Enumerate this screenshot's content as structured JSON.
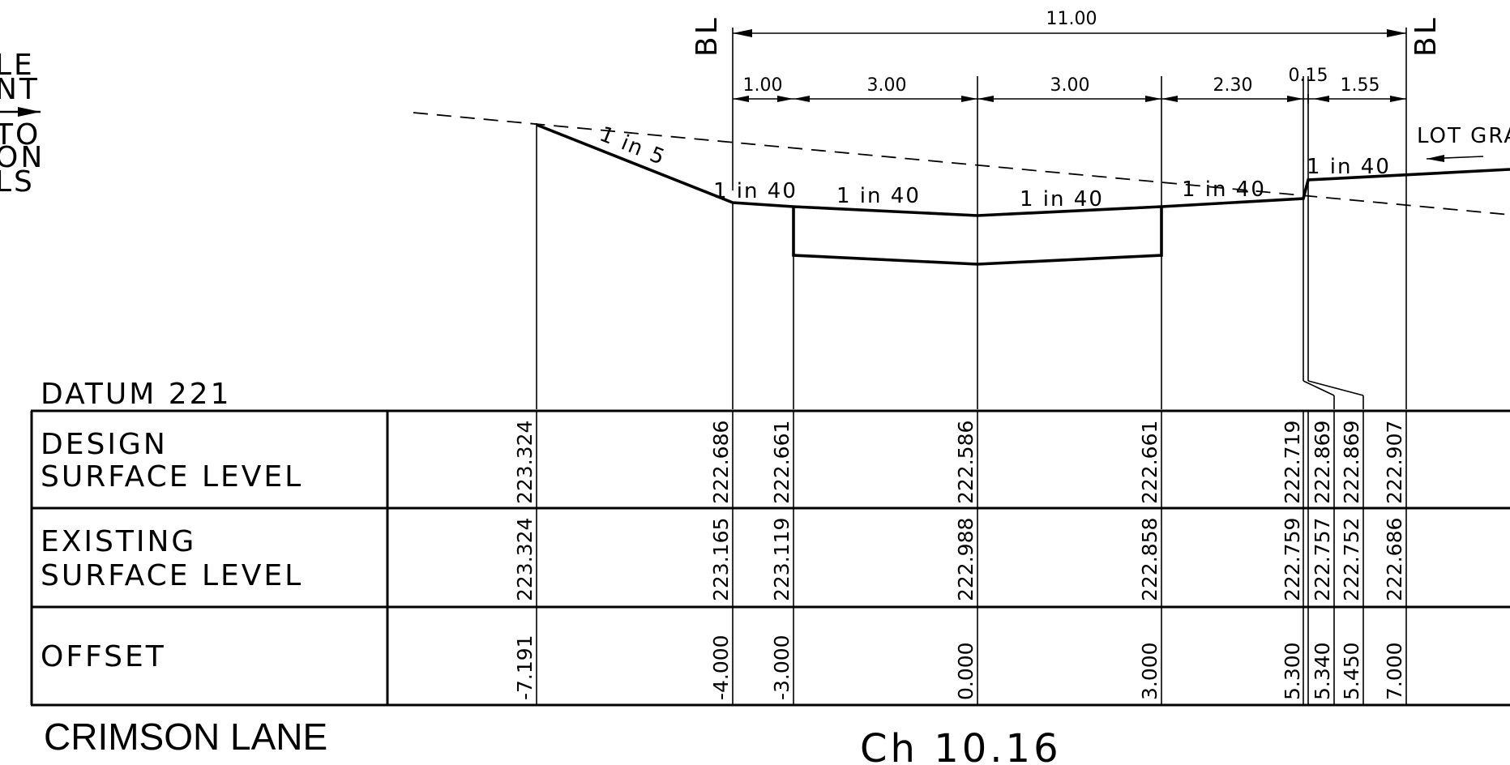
{
  "left_note": [
    "LE",
    "NT",
    "",
    "TO",
    "ON",
    "LS"
  ],
  "bl_left": "BL",
  "bl_right": "BL",
  "overall_dim": "11.00",
  "dims": [
    "1.00",
    "3.00",
    "3.00",
    "2.30",
    "0.15",
    "1.55"
  ],
  "slopes": {
    "batter": "1 in 5",
    "s1": "1 in 40",
    "s2": "1 in 40",
    "s3": "1 in 40",
    "s4": "1 in 40",
    "s5": "1 in 40"
  },
  "lot_grade": "LOT GRA",
  "datum": "DATUM 221",
  "rows": {
    "design": [
      "DESIGN",
      "SURFACE LEVEL"
    ],
    "existing": [
      "EXISTING",
      "SURFACE LEVEL"
    ],
    "offset": [
      "OFFSET"
    ]
  },
  "columns": [
    {
      "design": "223.324",
      "existing": "223.324",
      "offset": "-7.191"
    },
    {
      "design": "222.686",
      "existing": "223.165",
      "offset": "-4.000"
    },
    {
      "design": "222.661",
      "existing": "223.119",
      "offset": "-3.000"
    },
    {
      "design": "222.586",
      "existing": "222.988",
      "offset": "0.000"
    },
    {
      "design": "222.661",
      "existing": "222.858",
      "offset": "3.000"
    },
    {
      "design": "222.719",
      "existing": "222.759",
      "offset": "5.300"
    },
    {
      "design": "222.869",
      "existing": "222.757",
      "offset": "5.340"
    },
    {
      "design": "222.869",
      "existing": "222.752",
      "offset": "5.450"
    },
    {
      "design": "222.907",
      "existing": "222.686",
      "offset": "7.000"
    }
  ],
  "street_name": "CRIMSON LANE",
  "chainage": "Ch 10.16"
}
